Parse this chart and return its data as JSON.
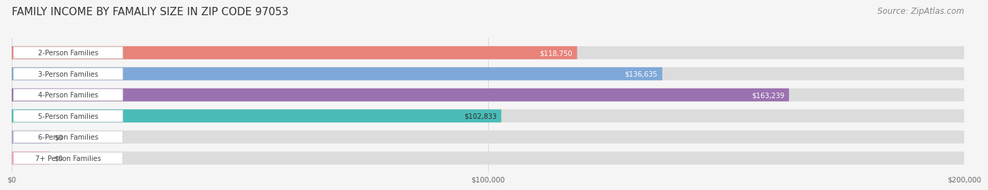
{
  "title": "FAMILY INCOME BY FAMALIY SIZE IN ZIP CODE 97053",
  "source": "Source: ZipAtlas.com",
  "categories": [
    "2-Person Families",
    "3-Person Families",
    "4-Person Families",
    "5-Person Families",
    "6-Person Families",
    "7+ Person Families"
  ],
  "values": [
    118750,
    136635,
    163239,
    102833,
    0,
    0
  ],
  "bar_colors": [
    "#E8837A",
    "#7FA8D8",
    "#9B72B0",
    "#4ABCB8",
    "#A8A8D8",
    "#F4A0B0"
  ],
  "label_colors": [
    "#ffffff",
    "#ffffff",
    "#ffffff",
    "#2a2a2a",
    "#2a2a2a",
    "#2a2a2a"
  ],
  "value_labels": [
    "$118,750",
    "$136,635",
    "$163,239",
    "$102,833",
    "$0",
    "$0"
  ],
  "xlim": [
    0,
    200000
  ],
  "xticks": [
    0,
    100000,
    200000
  ],
  "xticklabels": [
    "$0",
    "$100,000",
    "$200,000"
  ],
  "background_color": "#f5f5f5",
  "bar_bg_color": "#e8e8e8",
  "title_fontsize": 11,
  "source_fontsize": 8.5
}
